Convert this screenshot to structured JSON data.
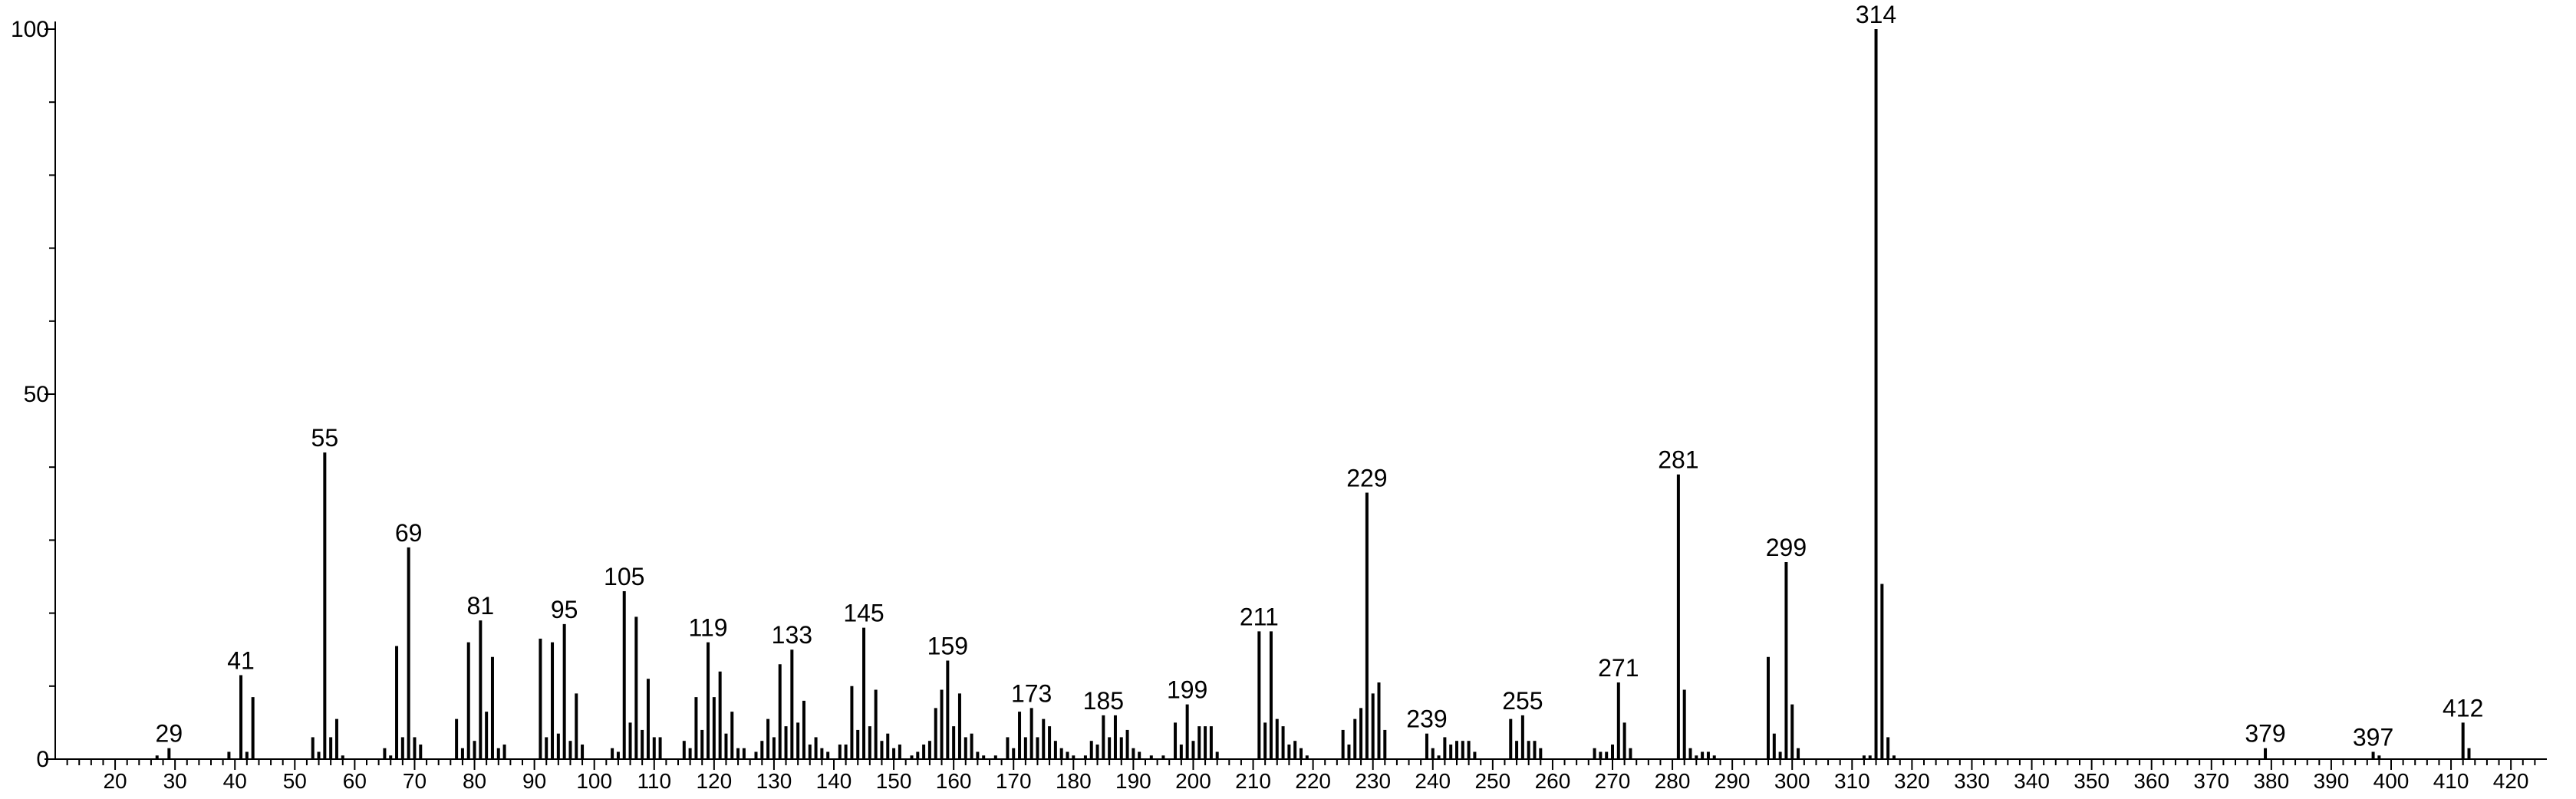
{
  "chart_data": {
    "type": "bar",
    "title": "",
    "xlabel": "",
    "ylabel": "",
    "xlim": [
      10,
      426
    ],
    "ylim": [
      0,
      100
    ],
    "x_ticks": [
      20,
      30,
      40,
      50,
      60,
      70,
      80,
      90,
      100,
      110,
      120,
      130,
      140,
      150,
      160,
      170,
      180,
      190,
      200,
      210,
      220,
      230,
      240,
      250,
      260,
      270,
      280,
      290,
      300,
      310,
      320,
      330,
      340,
      350,
      360,
      370,
      380,
      390,
      400,
      410,
      420
    ],
    "y_ticks": [
      0,
      50,
      100
    ],
    "grid": false,
    "colors": {
      "bar": "#000000",
      "axis": "#000000",
      "text": "#000000"
    },
    "labeled_peaks": [
      29,
      41,
      55,
      69,
      81,
      95,
      105,
      119,
      133,
      145,
      159,
      173,
      185,
      199,
      211,
      229,
      239,
      255,
      271,
      281,
      299,
      314,
      379,
      397,
      412
    ],
    "peaks": [
      {
        "x": 27,
        "y": 0.5
      },
      {
        "x": 29,
        "y": 1.5
      },
      {
        "x": 39,
        "y": 1
      },
      {
        "x": 41,
        "y": 11.5
      },
      {
        "x": 42,
        "y": 1
      },
      {
        "x": 43,
        "y": 8.5
      },
      {
        "x": 53,
        "y": 3
      },
      {
        "x": 54,
        "y": 1
      },
      {
        "x": 55,
        "y": 42
      },
      {
        "x": 56,
        "y": 3
      },
      {
        "x": 57,
        "y": 5.5
      },
      {
        "x": 58,
        "y": 0.5
      },
      {
        "x": 65,
        "y": 1.5
      },
      {
        "x": 66,
        "y": 0.5
      },
      {
        "x": 67,
        "y": 15.5
      },
      {
        "x": 68,
        "y": 3
      },
      {
        "x": 69,
        "y": 29
      },
      {
        "x": 70,
        "y": 3
      },
      {
        "x": 71,
        "y": 2
      },
      {
        "x": 77,
        "y": 5.5
      },
      {
        "x": 78,
        "y": 1.5
      },
      {
        "x": 79,
        "y": 16
      },
      {
        "x": 80,
        "y": 2.5
      },
      {
        "x": 81,
        "y": 19
      },
      {
        "x": 82,
        "y": 6.5
      },
      {
        "x": 83,
        "y": 14
      },
      {
        "x": 84,
        "y": 1.5
      },
      {
        "x": 85,
        "y": 2
      },
      {
        "x": 91,
        "y": 16.5
      },
      {
        "x": 92,
        "y": 3
      },
      {
        "x": 93,
        "y": 16
      },
      {
        "x": 94,
        "y": 3.5
      },
      {
        "x": 95,
        "y": 18.5
      },
      {
        "x": 96,
        "y": 2.5
      },
      {
        "x": 97,
        "y": 9
      },
      {
        "x": 98,
        "y": 2
      },
      {
        "x": 103,
        "y": 1.5
      },
      {
        "x": 104,
        "y": 1
      },
      {
        "x": 105,
        "y": 23
      },
      {
        "x": 106,
        "y": 5
      },
      {
        "x": 107,
        "y": 19.5
      },
      {
        "x": 108,
        "y": 4
      },
      {
        "x": 109,
        "y": 11
      },
      {
        "x": 110,
        "y": 3
      },
      {
        "x": 111,
        "y": 3
      },
      {
        "x": 115,
        "y": 2.5
      },
      {
        "x": 116,
        "y": 1.5
      },
      {
        "x": 117,
        "y": 8.5
      },
      {
        "x": 118,
        "y": 4
      },
      {
        "x": 119,
        "y": 16
      },
      {
        "x": 120,
        "y": 8.5
      },
      {
        "x": 121,
        "y": 12
      },
      {
        "x": 122,
        "y": 3.5
      },
      {
        "x": 123,
        "y": 6.5
      },
      {
        "x": 124,
        "y": 1.5
      },
      {
        "x": 125,
        "y": 1.5
      },
      {
        "x": 127,
        "y": 1
      },
      {
        "x": 128,
        "y": 2.5
      },
      {
        "x": 129,
        "y": 5.5
      },
      {
        "x": 130,
        "y": 3
      },
      {
        "x": 131,
        "y": 13
      },
      {
        "x": 132,
        "y": 4.5
      },
      {
        "x": 133,
        "y": 15
      },
      {
        "x": 134,
        "y": 5
      },
      {
        "x": 135,
        "y": 8
      },
      {
        "x": 136,
        "y": 2
      },
      {
        "x": 137,
        "y": 3
      },
      {
        "x": 138,
        "y": 1.5
      },
      {
        "x": 139,
        "y": 1
      },
      {
        "x": 141,
        "y": 2
      },
      {
        "x": 142,
        "y": 2
      },
      {
        "x": 143,
        "y": 10
      },
      {
        "x": 144,
        "y": 4
      },
      {
        "x": 145,
        "y": 18
      },
      {
        "x": 146,
        "y": 4.5
      },
      {
        "x": 147,
        "y": 9.5
      },
      {
        "x": 148,
        "y": 2.5
      },
      {
        "x": 149,
        "y": 3.5
      },
      {
        "x": 150,
        "y": 1.5
      },
      {
        "x": 151,
        "y": 2
      },
      {
        "x": 153,
        "y": 0.5
      },
      {
        "x": 154,
        "y": 1
      },
      {
        "x": 155,
        "y": 2
      },
      {
        "x": 156,
        "y": 2.5
      },
      {
        "x": 157,
        "y": 7
      },
      {
        "x": 158,
        "y": 9.5
      },
      {
        "x": 159,
        "y": 13.5
      },
      {
        "x": 160,
        "y": 4.5
      },
      {
        "x": 161,
        "y": 9
      },
      {
        "x": 162,
        "y": 3
      },
      {
        "x": 163,
        "y": 3.5
      },
      {
        "x": 164,
        "y": 1
      },
      {
        "x": 165,
        "y": 0.5
      },
      {
        "x": 167,
        "y": 0.5
      },
      {
        "x": 169,
        "y": 3
      },
      {
        "x": 170,
        "y": 1.5
      },
      {
        "x": 171,
        "y": 6.5
      },
      {
        "x": 172,
        "y": 3
      },
      {
        "x": 173,
        "y": 7
      },
      {
        "x": 174,
        "y": 3
      },
      {
        "x": 175,
        "y": 5.5
      },
      {
        "x": 176,
        "y": 4.5
      },
      {
        "x": 177,
        "y": 2.5
      },
      {
        "x": 178,
        "y": 1.5
      },
      {
        "x": 179,
        "y": 1
      },
      {
        "x": 180,
        "y": 0.5
      },
      {
        "x": 182,
        "y": 0.5
      },
      {
        "x": 183,
        "y": 2.5
      },
      {
        "x": 184,
        "y": 2
      },
      {
        "x": 185,
        "y": 6
      },
      {
        "x": 186,
        "y": 3
      },
      {
        "x": 187,
        "y": 6
      },
      {
        "x": 188,
        "y": 3
      },
      {
        "x": 189,
        "y": 4
      },
      {
        "x": 190,
        "y": 1.5
      },
      {
        "x": 191,
        "y": 1
      },
      {
        "x": 193,
        "y": 0.5
      },
      {
        "x": 195,
        "y": 0.5
      },
      {
        "x": 197,
        "y": 5
      },
      {
        "x": 198,
        "y": 2
      },
      {
        "x": 199,
        "y": 7.5
      },
      {
        "x": 200,
        "y": 2.5
      },
      {
        "x": 201,
        "y": 4.5
      },
      {
        "x": 202,
        "y": 4.5
      },
      {
        "x": 203,
        "y": 4.5
      },
      {
        "x": 204,
        "y": 1
      },
      {
        "x": 211,
        "y": 17.5
      },
      {
        "x": 212,
        "y": 5
      },
      {
        "x": 213,
        "y": 17.5
      },
      {
        "x": 214,
        "y": 5.5
      },
      {
        "x": 215,
        "y": 4.5
      },
      {
        "x": 216,
        "y": 2
      },
      {
        "x": 217,
        "y": 2.5
      },
      {
        "x": 218,
        "y": 1.5
      },
      {
        "x": 219,
        "y": 0.5
      },
      {
        "x": 225,
        "y": 4
      },
      {
        "x": 226,
        "y": 2
      },
      {
        "x": 227,
        "y": 5.5
      },
      {
        "x": 228,
        "y": 7
      },
      {
        "x": 229,
        "y": 36.5
      },
      {
        "x": 230,
        "y": 9
      },
      {
        "x": 231,
        "y": 10.5
      },
      {
        "x": 232,
        "y": 4
      },
      {
        "x": 239,
        "y": 3.5
      },
      {
        "x": 240,
        "y": 1.5
      },
      {
        "x": 241,
        "y": 0.5
      },
      {
        "x": 242,
        "y": 3
      },
      {
        "x": 243,
        "y": 2
      },
      {
        "x": 244,
        "y": 2.5
      },
      {
        "x": 245,
        "y": 2.5
      },
      {
        "x": 246,
        "y": 2.5
      },
      {
        "x": 247,
        "y": 1
      },
      {
        "x": 253,
        "y": 5.5
      },
      {
        "x": 254,
        "y": 2.5
      },
      {
        "x": 255,
        "y": 6
      },
      {
        "x": 256,
        "y": 2.5
      },
      {
        "x": 257,
        "y": 2.5
      },
      {
        "x": 258,
        "y": 1.5
      },
      {
        "x": 267,
        "y": 1.5
      },
      {
        "x": 268,
        "y": 1
      },
      {
        "x": 269,
        "y": 1
      },
      {
        "x": 270,
        "y": 2
      },
      {
        "x": 271,
        "y": 10.5
      },
      {
        "x": 272,
        "y": 5
      },
      {
        "x": 273,
        "y": 1.5
      },
      {
        "x": 281,
        "y": 39
      },
      {
        "x": 282,
        "y": 9.5
      },
      {
        "x": 283,
        "y": 1.5
      },
      {
        "x": 284,
        "y": 0.5
      },
      {
        "x": 285,
        "y": 1
      },
      {
        "x": 286,
        "y": 1
      },
      {
        "x": 287,
        "y": 0.5
      },
      {
        "x": 296,
        "y": 14
      },
      {
        "x": 297,
        "y": 3.5
      },
      {
        "x": 298,
        "y": 1
      },
      {
        "x": 299,
        "y": 27
      },
      {
        "x": 300,
        "y": 7.5
      },
      {
        "x": 301,
        "y": 1.5
      },
      {
        "x": 312,
        "y": 0.5
      },
      {
        "x": 313,
        "y": 0.5
      },
      {
        "x": 314,
        "y": 100
      },
      {
        "x": 315,
        "y": 24
      },
      {
        "x": 316,
        "y": 3
      },
      {
        "x": 317,
        "y": 0.5
      },
      {
        "x": 379,
        "y": 1.5
      },
      {
        "x": 397,
        "y": 1
      },
      {
        "x": 398,
        "y": 0.5
      },
      {
        "x": 412,
        "y": 5
      },
      {
        "x": 413,
        "y": 1.5
      }
    ]
  }
}
